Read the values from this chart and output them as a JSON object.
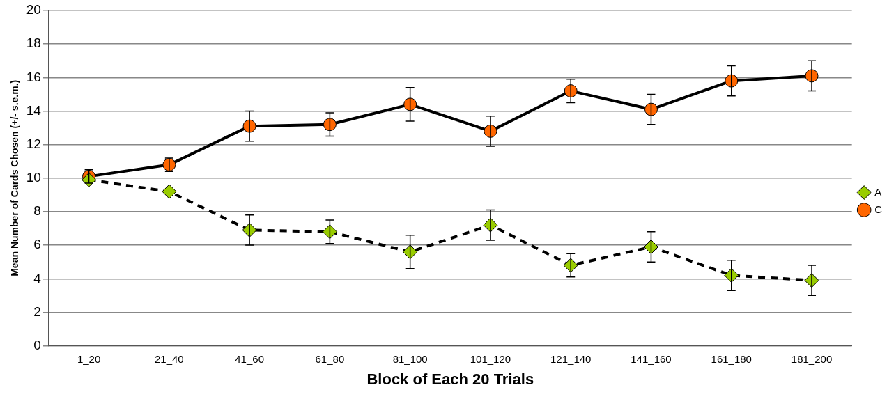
{
  "chart_data": {
    "type": "line",
    "xlabel": "Block of Each 20 Trials",
    "ylabel": "Mean Number of Cards Chosen (+/- s.e.m.)",
    "categories": [
      "1_20",
      "21_40",
      "41_60",
      "61_80",
      "81_100",
      "101_120",
      "121_140",
      "141_160",
      "161_180",
      "181_200"
    ],
    "ylim": [
      0,
      20
    ],
    "yticks": [
      0,
      2,
      4,
      6,
      8,
      10,
      12,
      14,
      16,
      18,
      20
    ],
    "grid": "y",
    "legend": "right",
    "series": [
      {
        "name": "A",
        "color": "#99cc00",
        "marker": "diamond",
        "line_style": "dashed",
        "values": [
          9.9,
          9.2,
          6.9,
          6.8,
          5.6,
          7.2,
          4.8,
          5.9,
          4.2,
          3.9
        ],
        "errors": [
          null,
          null,
          0.9,
          0.7,
          1.0,
          0.9,
          0.7,
          0.9,
          0.9,
          0.9
        ]
      },
      {
        "name": "C",
        "color": "#ff6600",
        "marker": "circle",
        "line_style": "solid",
        "values": [
          10.1,
          10.8,
          13.1,
          13.2,
          14.4,
          12.8,
          15.2,
          14.1,
          15.8,
          16.1
        ],
        "errors": [
          0.4,
          0.4,
          0.9,
          0.7,
          1.0,
          0.9,
          0.7,
          0.9,
          0.9,
          0.9
        ]
      }
    ]
  }
}
